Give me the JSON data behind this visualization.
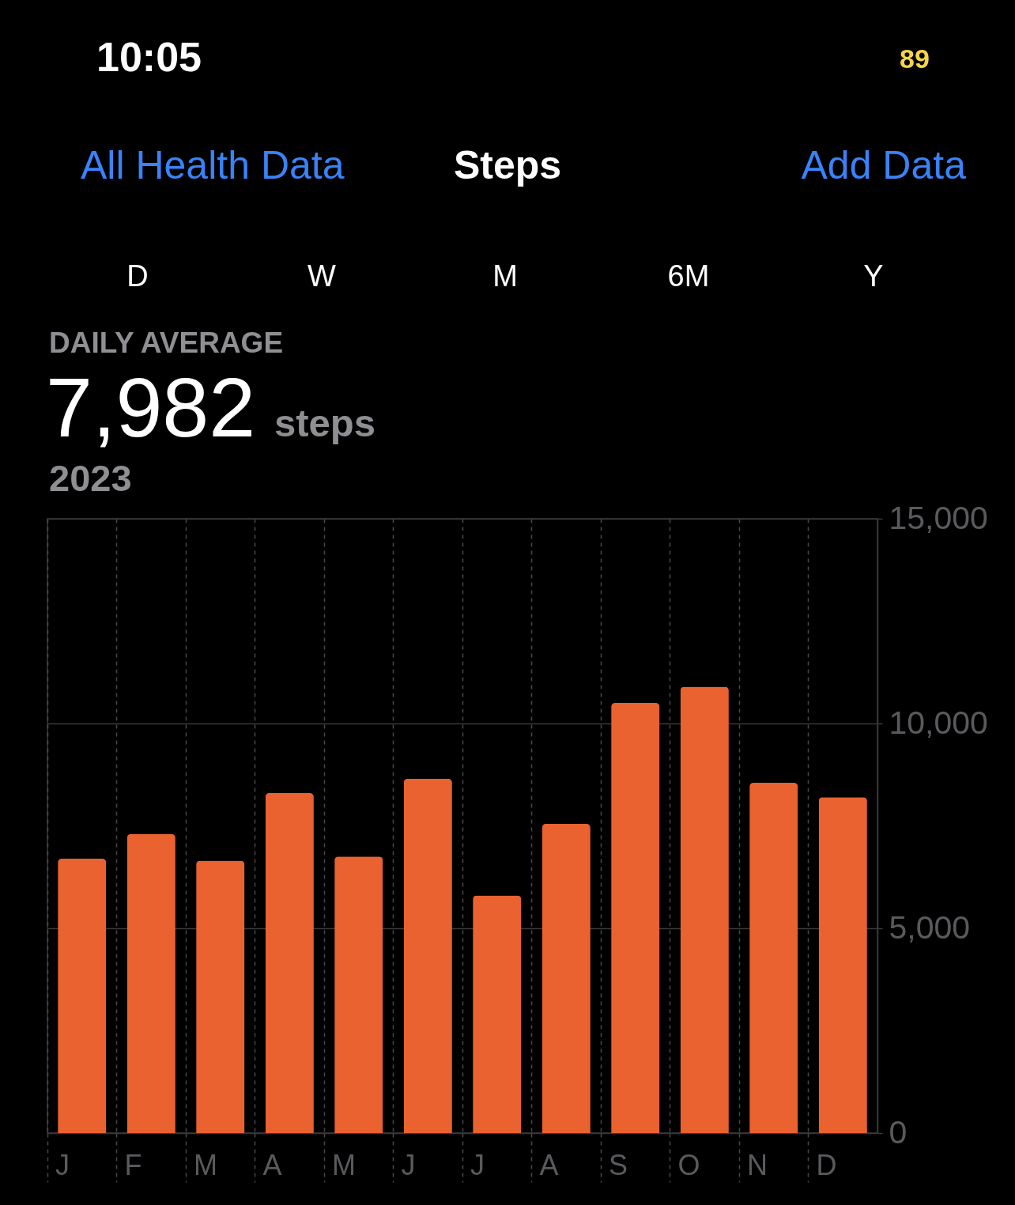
{
  "chart_data": {
    "type": "bar",
    "title": "Steps",
    "categories": [
      "J",
      "F",
      "M",
      "A",
      "M",
      "J",
      "J",
      "A",
      "S",
      "O",
      "N",
      "D"
    ],
    "values": [
      6700,
      7300,
      6650,
      8300,
      6750,
      8650,
      5800,
      7550,
      10500,
      10900,
      8550,
      8200
    ],
    "color": "#e9622f",
    "ylim": [
      0,
      15000
    ],
    "yticks": [
      0,
      {
        "value": 5000,
        "label": "5,000"
      },
      {
        "value": 10000,
        "label": "10,000"
      },
      {
        "value": 15000,
        "label": "15,000"
      }
    ],
    "grid": true,
    "annotations": [
      "10:05",
      "89",
      "All Health Data",
      "Add Data",
      "D",
      "W",
      "M",
      "6M",
      "Y",
      "DAILY AVERAGE",
      "7,982",
      "steps",
      "2023"
    ]
  }
}
